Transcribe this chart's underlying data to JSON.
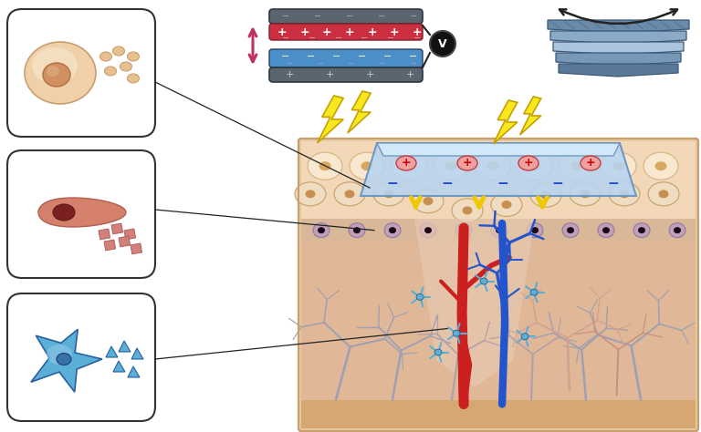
{
  "bg_color": "#ffffff",
  "cell1_color": "#f0d0a8",
  "cell1_nucleus_color": "#c08050",
  "cell1_dot_color": "#e8c090",
  "cell2_color": "#d4806a",
  "cell2_nucleus_color": "#7a2020",
  "cell2_sq_color": "#d07060",
  "cell3_color": "#5bafd6",
  "cell3_nucleus_color": "#2a6090",
  "cell3_tri_color": "#5bafd6",
  "skin_top_color": "#f0d8c0",
  "skin_mid_color": "#e8c8a8",
  "skin_dermis_color": "#ddb890",
  "skin_deep_color": "#c8a078",
  "skin_bottom_color": "#d4a880",
  "skin_base_color": "#e0b890",
  "epidermis_cell_color": "#f5e0c0",
  "epidermis_cell_edge": "#d4b080",
  "epidermis_nuc_color": "#c09060",
  "dermis_band_color": "#d0a0c0",
  "dermis_cell_color": "#c090b0",
  "dermis_nuc_color": "#2a1828",
  "wound_color": "#e8c0a8",
  "device_body_color": "#aac8e8",
  "device_top_color": "#c0d8f0",
  "device_border_color": "#5a80a8",
  "device_charge_plus": "#ff6060",
  "device_charge_minus": "#4444cc",
  "plate_gray": "#5a6570",
  "plate_red": "#cc3040",
  "plate_blue": "#4a8fc8",
  "lightning_fill": "#f8e820",
  "lightning_edge": "#c8a000",
  "arrow_pink": "#c03060",
  "arrow_yellow": "#f0c800",
  "voltmeter_bg": "#222222",
  "red_vessel": "#cc2020",
  "blue_vessel": "#2255cc",
  "nerve_gray": "#9090a8",
  "nerve_pink": "#d4a090",
  "star_cell_color": "#5bafd6",
  "roll_layer1": "#6a8aaa",
  "roll_layer2": "#8aaac8",
  "roll_layer3": "#aac4de",
  "roll_layer4": "#7898b8",
  "roll_stripe": "#5a7898"
}
